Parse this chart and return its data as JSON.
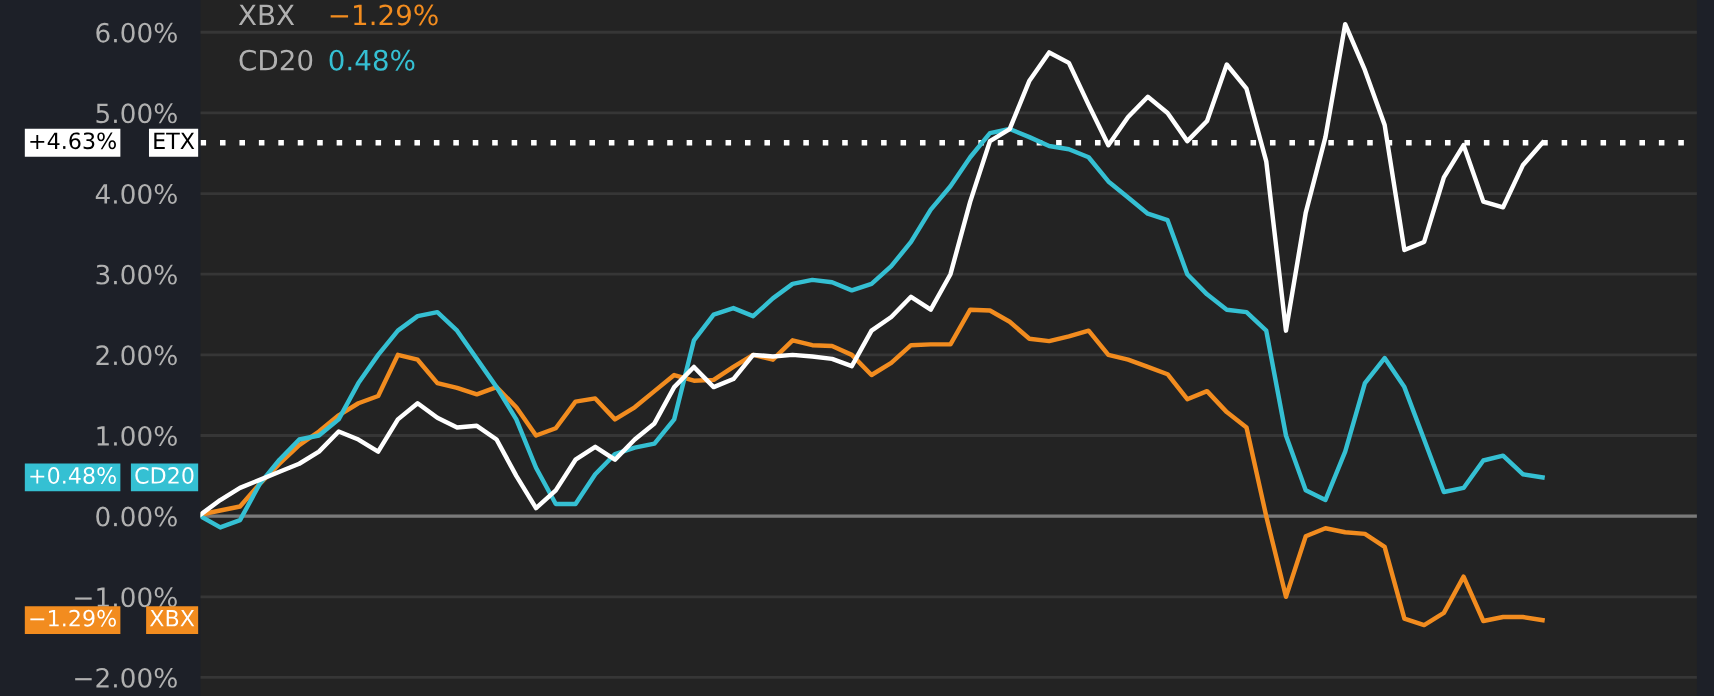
{
  "chart_data": {
    "type": "line",
    "categories": [
      null,
      null,
      null,
      null,
      null,
      null,
      null,
      null,
      null,
      null,
      null,
      null,
      null,
      null,
      null,
      null,
      null,
      null,
      null,
      null,
      null,
      null,
      null,
      null,
      null,
      null,
      null,
      null,
      null,
      null,
      null,
      null,
      null,
      null,
      null,
      null,
      null,
      null,
      null,
      null,
      null,
      null,
      null,
      null,
      null,
      null,
      null,
      null,
      null,
      null,
      null,
      null,
      null,
      null,
      null,
      null,
      null,
      null,
      null,
      null,
      null,
      null,
      null,
      null,
      null,
      null,
      null,
      null,
      null
    ],
    "series": [
      {
        "name": "XBX",
        "color": "#f28c1f",
        "values": [
          0.02,
          0.07,
          0.12,
          0.4,
          0.65,
          0.88,
          1.05,
          1.25,
          1.4,
          1.49,
          2.0,
          1.94,
          1.65,
          1.59,
          1.51,
          1.6,
          1.35,
          1.0,
          1.09,
          1.42,
          1.46,
          1.2,
          1.35,
          1.55,
          1.75,
          1.68,
          1.69,
          1.85,
          2.0,
          1.94,
          2.18,
          2.12,
          2.11,
          2.0,
          1.75,
          1.9,
          2.12,
          2.13,
          2.13,
          2.56,
          2.55,
          2.41,
          2.2,
          2.17,
          2.23,
          2.3,
          2.0,
          1.94,
          1.85,
          1.76,
          1.45,
          1.55,
          1.29,
          1.1,
          0,
          -1.0,
          -0.25,
          -0.15,
          -0.2,
          -0.22,
          -0.38,
          -1.27,
          -1.35,
          -1.2,
          -0.75,
          -1.3,
          -1.25,
          -1.25,
          -1.29
        ]
      },
      {
        "name": "CD20",
        "color": "#35c0d3",
        "values": [
          0,
          -0.14,
          -0.05,
          0.4,
          0.7,
          0.95,
          1.0,
          1.2,
          1.65,
          2.0,
          2.3,
          2.48,
          2.53,
          2.3,
          1.95,
          1.6,
          1.2,
          0.6,
          0.15,
          0.15,
          0.52,
          0.77,
          0.85,
          0.9,
          1.2,
          2.18,
          2.5,
          2.58,
          2.48,
          2.7,
          2.88,
          2.93,
          2.9,
          2.8,
          2.88,
          3.1,
          3.4,
          3.8,
          4.09,
          4.45,
          4.75,
          4.8,
          4.7,
          4.59,
          4.55,
          4.45,
          4.15,
          3.95,
          3.75,
          3.67,
          3.0,
          2.75,
          2.56,
          2.53,
          2.3,
          1.0,
          0.32,
          0.2,
          0.8,
          1.65,
          1.96,
          1.6,
          0.95,
          0.3,
          0.35,
          0.69,
          0.75,
          0.52,
          0.48
        ]
      },
      {
        "name": "ETX",
        "color": "#ffffff",
        "values": [
          0.02,
          0.2,
          0.35,
          0.45,
          0.55,
          0.65,
          0.8,
          1.05,
          0.95,
          0.8,
          1.2,
          1.4,
          1.22,
          1.1,
          1.12,
          0.95,
          0.5,
          0.1,
          0.32,
          0.7,
          0.86,
          0.7,
          0.95,
          1.15,
          1.6,
          1.85,
          1.6,
          1.7,
          2.0,
          1.98,
          2.0,
          1.98,
          1.95,
          1.86,
          2.3,
          2.47,
          2.72,
          2.56,
          3.0,
          3.9,
          4.65,
          4.8,
          5.4,
          5.75,
          5.62,
          5.1,
          4.6,
          4.95,
          5.2,
          5.0,
          4.65,
          4.9,
          5.6,
          5.3,
          4.4,
          2.3,
          3.76,
          4.7,
          6.1,
          5.53,
          4.85,
          3.3,
          3.4,
          4.2,
          4.6,
          3.9,
          3.83,
          4.35,
          4.63
        ]
      }
    ],
    "ylim": [
      -2.23,
      6.4
    ],
    "yticks": [
      {
        "value": -2,
        "label": "−2.00%"
      },
      {
        "value": -1,
        "label": "−1.00%"
      },
      {
        "value": 0,
        "label": "0.00%"
      },
      {
        "value": 1,
        "label": "1.00%"
      },
      {
        "value": 2,
        "label": "2.00%"
      },
      {
        "value": 3,
        "label": "3.00%"
      },
      {
        "value": 4,
        "label": "4.00%"
      },
      {
        "value": 5,
        "label": "5.00%"
      },
      {
        "value": 6,
        "label": "6.00%"
      }
    ],
    "grid": "y",
    "legend": "left",
    "ref_lines": [
      {
        "axis": "y",
        "value": 4.63,
        "color": "#ffffff",
        "line_style": "dotted"
      },
      {
        "axis": "y",
        "value": 0,
        "color": "#7a7a7a",
        "line_style": "solid"
      }
    ],
    "annotations": [
      "XBX",
      "−1.29%",
      "CD20",
      "0.48%",
      "−1.29%",
      "+0.48%",
      "+4.63%"
    ]
  }
}
